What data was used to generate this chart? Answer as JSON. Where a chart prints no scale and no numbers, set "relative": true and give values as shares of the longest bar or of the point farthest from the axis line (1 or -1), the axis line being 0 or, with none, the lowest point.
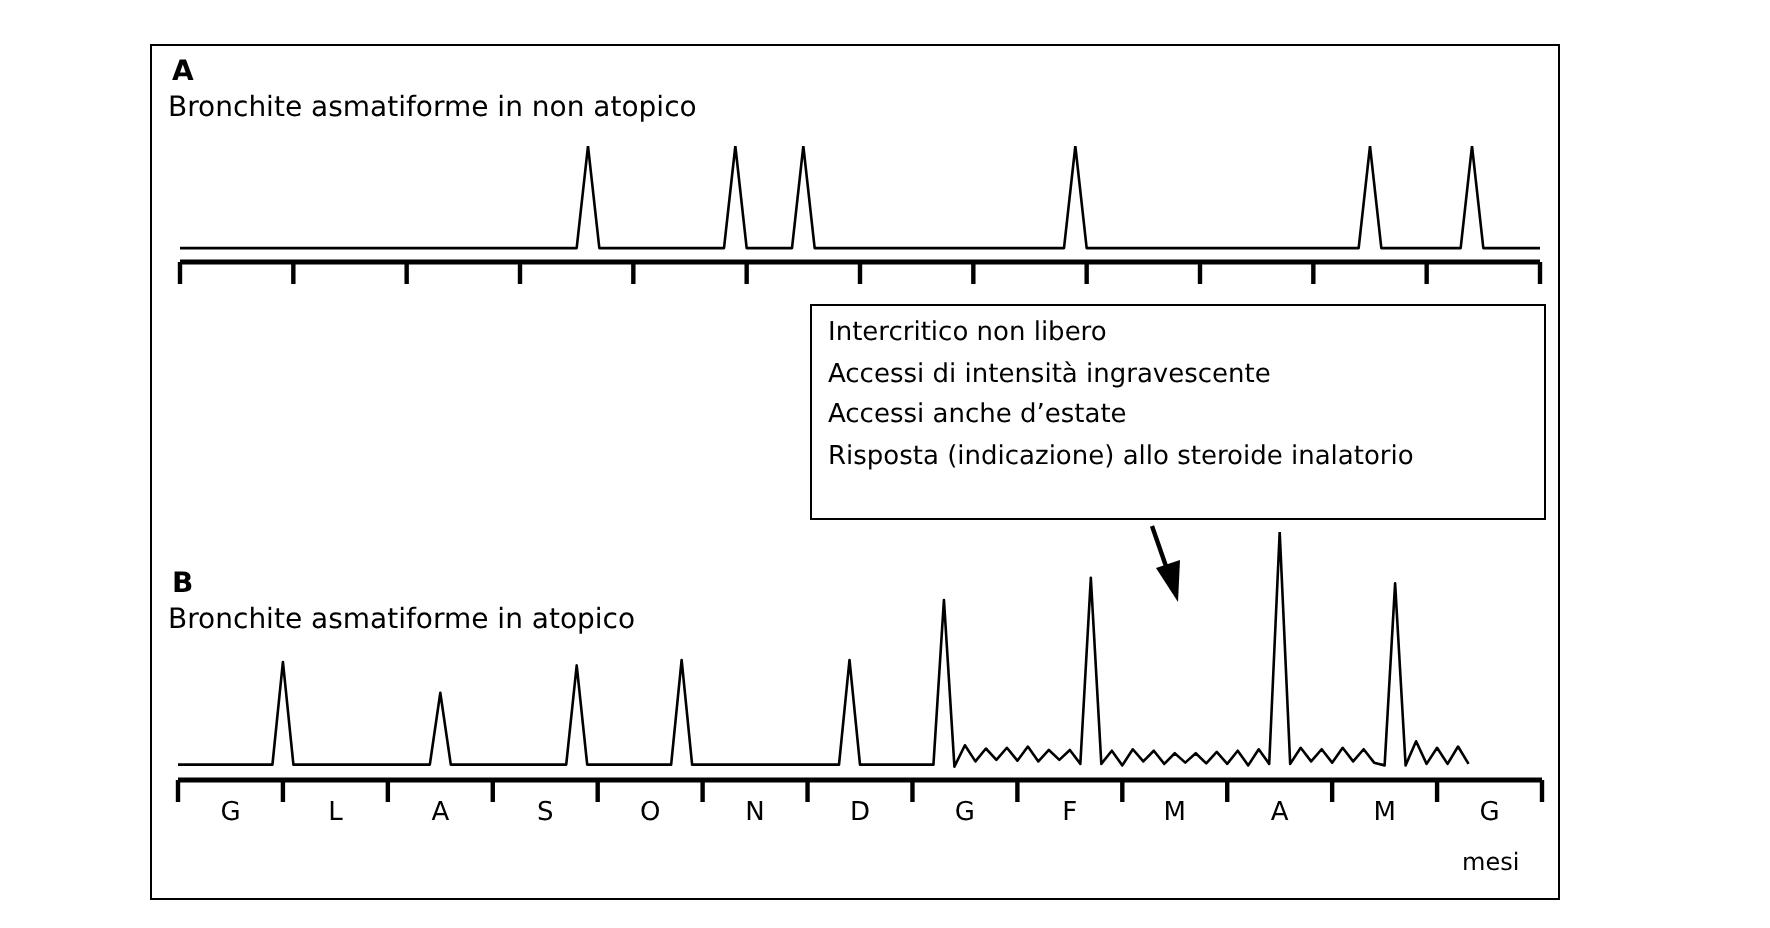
{
  "chart_data": [
    {
      "type": "line",
      "title": "A",
      "subtitle": "Bronchite asmatiforme in non atopico",
      "relative": true,
      "categories": [
        null,
        null,
        null,
        null,
        null,
        null,
        null,
        null,
        null,
        null,
        null,
        null,
        null,
        null,
        null,
        null,
        null,
        null,
        null,
        null,
        null,
        null,
        null,
        null,
        null,
        null,
        null,
        null,
        null,
        null,
        null,
        null,
        null,
        null,
        null,
        null,
        null,
        null,
        null,
        null,
        null,
        null,
        null,
        null,
        null,
        null,
        null,
        null,
        null,
        null,
        null,
        null,
        null,
        null,
        null,
        null,
        null,
        null,
        null,
        null,
        null,
        null,
        null,
        null,
        null,
        null,
        null,
        null,
        null,
        null,
        null,
        null,
        null,
        null,
        null,
        null,
        null,
        null,
        null,
        null,
        null,
        null,
        null,
        null,
        null,
        null,
        null,
        null,
        null,
        null,
        null,
        null,
        null,
        null,
        null,
        null,
        null,
        null,
        null,
        null,
        null,
        null,
        null,
        null,
        null,
        null,
        null,
        null,
        null,
        null,
        null,
        null,
        null,
        null,
        null,
        null,
        null,
        null,
        null,
        null,
        null
      ],
      "series": [
        {
          "color": "#000000",
          "values": [
            0.12,
            0.12,
            0.12,
            0.12,
            0.12,
            0.12,
            0.12,
            0.12,
            0.12,
            0.12,
            0.12,
            0.12,
            0.12,
            0.12,
            0.12,
            0.12,
            0.12,
            0.12,
            0.12,
            0.12,
            0.12,
            0.12,
            0.12,
            0.12,
            0.12,
            0.12,
            0.12,
            0.12,
            0.12,
            0.12,
            0.12,
            0.12,
            0.12,
            0.12,
            0.12,
            0.12,
            1,
            0.12,
            0.12,
            0.12,
            0.12,
            0.12,
            0.12,
            0.12,
            0.12,
            0.12,
            0.12,
            0.12,
            0.12,
            1,
            0.12,
            0.12,
            0.12,
            0.12,
            0.12,
            1,
            0.12,
            0.12,
            0.12,
            0.12,
            0.12,
            0.12,
            0.12,
            0.12,
            0.12,
            0.12,
            0.12,
            0.12,
            0.12,
            0.12,
            0.12,
            0.12,
            0.12,
            0.12,
            0.12,
            0.12,
            0.12,
            0.12,
            0.12,
            1,
            0.12,
            0.12,
            0.12,
            0.12,
            0.12,
            0.12,
            0.12,
            0.12,
            0.12,
            0.12,
            0.12,
            0.12,
            0.12,
            0.12,
            0.12,
            0.12,
            0.12,
            0.12,
            0.12,
            0.12,
            0.12,
            0.12,
            0.12,
            0.12,
            0.12,
            1,
            0.12,
            0.12,
            0.12,
            0.12,
            0.12,
            0.12,
            0.12,
            0.12,
            1,
            0.12,
            0.12,
            0.12,
            0.12,
            0.12,
            0.12
          ]
        }
      ]
    },
    {
      "type": "line",
      "title": "B",
      "subtitle": "Bronchite asmatiforme in atopico",
      "relative": true,
      "xlabel": "mesi",
      "categories": [
        null,
        null,
        null,
        null,
        null,
        "G",
        null,
        null,
        null,
        null,
        null,
        null,
        null,
        null,
        null,
        "L",
        null,
        null,
        null,
        null,
        null,
        null,
        null,
        null,
        null,
        "A",
        null,
        null,
        null,
        null,
        null,
        null,
        null,
        null,
        null,
        "S",
        null,
        null,
        null,
        null,
        null,
        null,
        null,
        null,
        null,
        "O",
        null,
        null,
        null,
        null,
        null,
        null,
        null,
        null,
        null,
        "N",
        null,
        null,
        null,
        null,
        null,
        null,
        null,
        null,
        null,
        "D",
        null,
        null,
        null,
        null,
        null,
        null,
        null,
        null,
        null,
        "G",
        null,
        null,
        null,
        null,
        null,
        null,
        null,
        null,
        null,
        "F",
        null,
        null,
        null,
        null,
        null,
        null,
        null,
        null,
        null,
        "M",
        null,
        null,
        null,
        null,
        null,
        null,
        null,
        null,
        null,
        "A",
        null,
        null,
        null,
        null,
        null,
        null,
        null,
        null,
        null,
        "M",
        null,
        null,
        null,
        null,
        null,
        null,
        null,
        null,
        null,
        "G",
        null,
        null,
        null,
        null,
        null
      ],
      "annotations": [
        "Intercritico non libero",
        "Accessi di intensità ingravescente",
        "Accessi anche d’estate",
        "Risposta (indicazione) allo steroide inalatorio"
      ],
      "series": [
        {
          "color": "#000000",
          "values": [
            0.062,
            0.062,
            0.062,
            0.062,
            0.062,
            0.062,
            0.062,
            0.062,
            0.062,
            0.062,
            0.476,
            0.062,
            0.062,
            0.062,
            0.062,
            0.062,
            0.062,
            0.062,
            0.062,
            0.062,
            0.062,
            0.062,
            0.062,
            0.062,
            0.062,
            0.352,
            0.062,
            0.062,
            0.062,
            0.062,
            0.062,
            0.062,
            0.062,
            0.062,
            0.062,
            0.062,
            0.062,
            0.062,
            0.462,
            0.062,
            0.062,
            0.062,
            0.062,
            0.062,
            0.062,
            0.062,
            0.062,
            0.062,
            0.484,
            0.062,
            0.062,
            0.062,
            0.062,
            0.062,
            0.062,
            0.062,
            0.062,
            0.062,
            0.062,
            0.062,
            0.062,
            0.062,
            0.062,
            0.062,
            0.484,
            0.062,
            0.062,
            0.062,
            0.062,
            0.062,
            0.062,
            0.062,
            0.062,
            0.726,
            0.054,
            0.14,
            0.075,
            0.127,
            0.081,
            0.13,
            0.078,
            0.135,
            0.075,
            0.121,
            0.081,
            0.121,
            0.065,
            0.815,
            0.065,
            0.118,
            0.059,
            0.124,
            0.075,
            0.118,
            0.065,
            0.108,
            0.07,
            0.108,
            0.067,
            0.113,
            0.065,
            0.118,
            0.059,
            0.124,
            0.065,
            1.0,
            0.065,
            0.13,
            0.075,
            0.124,
            0.07,
            0.13,
            0.075,
            0.124,
            0.07,
            0.059,
            0.793,
            0.059,
            0.156,
            0.065,
            0.13,
            0.065,
            0.135,
            0.065,
            null,
            null,
            null,
            null,
            null,
            null,
            null
          ]
        }
      ]
    }
  ]
}
